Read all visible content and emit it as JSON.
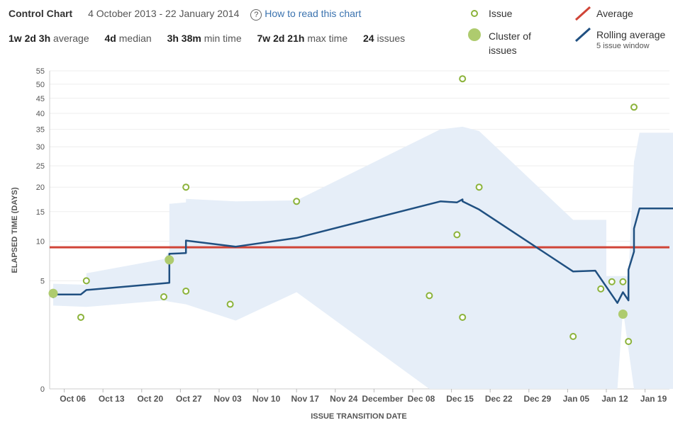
{
  "header": {
    "title": "Control Chart",
    "date_range": "4 October 2013 - 22 January 2014",
    "help_link": "How to read this chart"
  },
  "stats": [
    {
      "value": "1w 2d 3h",
      "label": "average"
    },
    {
      "value": "4d",
      "label": "median"
    },
    {
      "value": "3h 38m",
      "label": "min time"
    },
    {
      "value": "7w 2d 21h",
      "label": "max time"
    },
    {
      "value": "24",
      "label": "issues"
    }
  ],
  "legend": {
    "issue": "Issue",
    "cluster_line1": "Cluster of",
    "cluster_line2": "issues",
    "average": "Average",
    "rolling": "Rolling average",
    "rolling_sub": "5 issue window"
  },
  "colors": {
    "issue": "#8cb33b",
    "cluster": "#aecb6e",
    "average": "#d04437",
    "rolling": "#205081",
    "band": "#e6eef8"
  },
  "chart_data": {
    "type": "scatter",
    "x_start": "2013-10-04",
    "xlabel": "ISSUE TRANSITION DATE",
    "ylabel": "ELAPSED TIME (DAYS)",
    "y_ticks": [
      0,
      5,
      10,
      15,
      20,
      25,
      30,
      35,
      40,
      45,
      50,
      55
    ],
    "x_ticks": [
      {
        "date": "2013-10-06",
        "label": "Oct 06"
      },
      {
        "date": "2013-10-13",
        "label": "Oct 13"
      },
      {
        "date": "2013-10-20",
        "label": "Oct 20"
      },
      {
        "date": "2013-10-27",
        "label": "Oct 27"
      },
      {
        "date": "2013-11-03",
        "label": "Nov 03"
      },
      {
        "date": "2013-11-10",
        "label": "Nov 10"
      },
      {
        "date": "2013-11-17",
        "label": "Nov 17"
      },
      {
        "date": "2013-11-24",
        "label": "Nov 24"
      },
      {
        "date": "2013-12-01",
        "label": "December"
      },
      {
        "date": "2013-12-08",
        "label": "Dec 08"
      },
      {
        "date": "2013-12-15",
        "label": "Dec 15"
      },
      {
        "date": "2013-12-22",
        "label": "Dec 22"
      },
      {
        "date": "2013-12-29",
        "label": "Dec 29"
      },
      {
        "date": "2014-01-05",
        "label": "Jan 05"
      },
      {
        "date": "2014-01-12",
        "label": "Jan 12"
      },
      {
        "date": "2014-01-19",
        "label": "Jan 19"
      }
    ],
    "average": 9.1,
    "issues": [
      {
        "date": "2013-10-09",
        "days": 2.0
      },
      {
        "date": "2013-10-10",
        "days": 5.0
      },
      {
        "date": "2013-10-24",
        "days": 3.5
      },
      {
        "date": "2013-10-28",
        "days": 20.0
      },
      {
        "date": "2013-10-28",
        "days": 4.0
      },
      {
        "date": "2013-11-05",
        "days": 2.9
      },
      {
        "date": "2013-11-17",
        "days": 17.0
      },
      {
        "date": "2013-12-11",
        "days": 3.6
      },
      {
        "date": "2013-12-16",
        "days": 11.0
      },
      {
        "date": "2013-12-17",
        "days": 52.0
      },
      {
        "date": "2013-12-17",
        "days": 2.0
      },
      {
        "date": "2013-12-20",
        "days": 20.0
      },
      {
        "date": "2014-01-06",
        "days": 1.0
      },
      {
        "date": "2014-01-11",
        "days": 4.2
      },
      {
        "date": "2014-01-13",
        "days": 4.9
      },
      {
        "date": "2014-01-15",
        "days": 4.9
      },
      {
        "date": "2014-01-16",
        "days": 0.8
      },
      {
        "date": "2014-01-17",
        "days": 42.0
      }
    ],
    "clusters": [
      {
        "date": "2013-10-04",
        "days": 3.8
      },
      {
        "date": "2013-10-25",
        "days": 7.4
      },
      {
        "date": "2014-01-15",
        "days": 2.2
      }
    ],
    "rolling_average": [
      {
        "date": "2013-10-04",
        "days": 3.4
      },
      {
        "date": "2013-10-04",
        "days": 3.7
      },
      {
        "date": "2013-10-09",
        "days": 3.7
      },
      {
        "date": "2013-10-10",
        "days": 4.1
      },
      {
        "date": "2013-10-25",
        "days": 4.8
      },
      {
        "date": "2013-10-25",
        "days": 5.4
      },
      {
        "date": "2013-10-25",
        "days": 8.2
      },
      {
        "date": "2013-10-28",
        "days": 8.3
      },
      {
        "date": "2013-10-28",
        "days": 10.1
      },
      {
        "date": "2013-11-06",
        "days": 9.2
      },
      {
        "date": "2013-11-17",
        "days": 10.5
      },
      {
        "date": "2013-12-13",
        "days": 17.0
      },
      {
        "date": "2013-12-16",
        "days": 16.8
      },
      {
        "date": "2013-12-17",
        "days": 17.4
      },
      {
        "date": "2013-12-17",
        "days": 17.0
      },
      {
        "date": "2013-12-20",
        "days": 15.4
      },
      {
        "date": "2014-01-06",
        "days": 6.0
      },
      {
        "date": "2014-01-10",
        "days": 6.1
      },
      {
        "date": "2014-01-14",
        "days": 3.0
      },
      {
        "date": "2014-01-15",
        "days": 3.9
      },
      {
        "date": "2014-01-16",
        "days": 3.2
      },
      {
        "date": "2014-01-16",
        "days": 6.2
      },
      {
        "date": "2014-01-17",
        "days": 8.5
      },
      {
        "date": "2014-01-17",
        "days": 12.0
      },
      {
        "date": "2014-01-18",
        "days": 15.6
      },
      {
        "date": "2014-01-25",
        "days": 15.6
      }
    ],
    "band_upper": [
      {
        "date": "2013-10-04",
        "days": 4.7
      },
      {
        "date": "2013-10-10",
        "days": 4.6
      },
      {
        "date": "2013-10-10",
        "days": 5.8
      },
      {
        "date": "2013-10-24",
        "days": 7.5
      },
      {
        "date": "2013-10-25",
        "days": 8.6
      },
      {
        "date": "2013-10-25",
        "days": 16.5
      },
      {
        "date": "2013-10-28",
        "days": 16.8
      },
      {
        "date": "2013-10-28",
        "days": 17.5
      },
      {
        "date": "2013-11-06",
        "days": 17.0
      },
      {
        "date": "2013-11-17",
        "days": 17.2
      },
      {
        "date": "2013-12-13",
        "days": 35.0
      },
      {
        "date": "2013-12-17",
        "days": 35.8
      },
      {
        "date": "2013-12-20",
        "days": 34.5
      },
      {
        "date": "2014-01-06",
        "days": 13.5
      },
      {
        "date": "2014-01-12",
        "days": 13.5
      },
      {
        "date": "2014-01-12",
        "days": 5.5
      },
      {
        "date": "2014-01-16",
        "days": 5.5
      },
      {
        "date": "2014-01-17",
        "days": 26.0
      },
      {
        "date": "2014-01-18",
        "days": 34.0
      },
      {
        "date": "2014-01-25",
        "days": 34.0
      }
    ],
    "band_lower": [
      {
        "date": "2014-01-25",
        "days": 0.0
      },
      {
        "date": "2014-01-17",
        "days": 0.0
      },
      {
        "date": "2014-01-15",
        "days": 2.5
      },
      {
        "date": "2014-01-14",
        "days": 0.0
      },
      {
        "date": "2014-01-11",
        "days": 0.0
      },
      {
        "date": "2013-12-11",
        "days": 0.0
      },
      {
        "date": "2013-11-17",
        "days": 3.9
      },
      {
        "date": "2013-11-06",
        "days": 1.8
      },
      {
        "date": "2013-10-28",
        "days": 2.9
      },
      {
        "date": "2013-10-25",
        "days": 3.1
      },
      {
        "date": "2013-10-24",
        "days": 3.2
      },
      {
        "date": "2013-10-10",
        "days": 2.7
      },
      {
        "date": "2013-10-04",
        "days": 2.8
      }
    ]
  }
}
